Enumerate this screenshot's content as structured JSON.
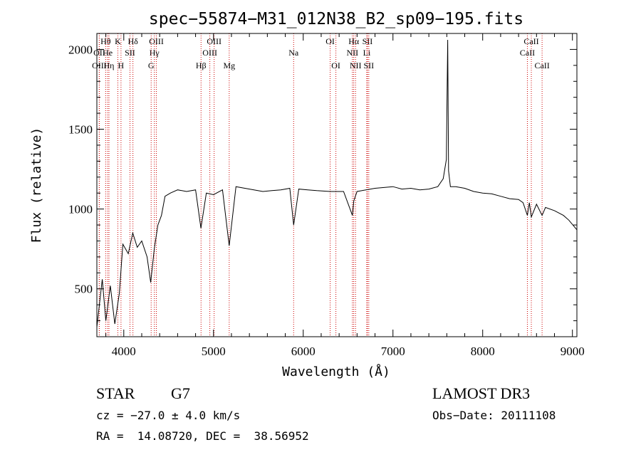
{
  "chart_data": {
    "type": "line",
    "title": "spec−55874−M31_012N38_B2_sp09−195.fits",
    "xlabel": "Wavelength (Å)",
    "ylabel": "Flux (relative)",
    "xlim": [
      3700,
      9050
    ],
    "ylim": [
      200,
      2100
    ],
    "x_ticks": [
      4000,
      5000,
      6000,
      7000,
      8000,
      9000
    ],
    "x_tick_labels": [
      "4000",
      "5000",
      "6000",
      "7000",
      "8000",
      "9000"
    ],
    "y_ticks": [
      500,
      1000,
      1500,
      2000
    ],
    "y_tick_labels": [
      "500",
      "1000",
      "1500",
      "2000"
    ],
    "grid": false,
    "line_color": "#000000",
    "marker_color": "#cc0000",
    "lines": [
      {
        "label": "Hθ",
        "wavelength": 3798,
        "row": 1
      },
      {
        "label": "OII",
        "wavelength": 3727,
        "row": 2
      },
      {
        "label": "OIII",
        "wavelength": 3727,
        "row": 3
      },
      {
        "label": "He",
        "wavelength": 3820,
        "row": 2
      },
      {
        "label": "Hη",
        "wavelength": 3835,
        "row": 3
      },
      {
        "label": "K",
        "wavelength": 3934,
        "row": 1
      },
      {
        "label": "SII",
        "wavelength": 4069,
        "row": 2
      },
      {
        "label": "H",
        "wavelength": 3969,
        "row": 3
      },
      {
        "label": "Hδ",
        "wavelength": 4102,
        "row": 1
      },
      {
        "label": "OIII",
        "wavelength": 4363,
        "row": 1
      },
      {
        "label": "Hγ",
        "wavelength": 4341,
        "row": 2
      },
      {
        "label": "G",
        "wavelength": 4305,
        "row": 3
      },
      {
        "label": "OIII",
        "wavelength": 5007,
        "row": 1
      },
      {
        "label": "OIII",
        "wavelength": 4959,
        "row": 2
      },
      {
        "label": "Hβ",
        "wavelength": 4861,
        "row": 3
      },
      {
        "label": "Mg",
        "wavelength": 5175,
        "row": 3
      },
      {
        "label": "Na",
        "wavelength": 5893,
        "row": 2
      },
      {
        "label": "OI",
        "wavelength": 6300,
        "row": 1
      },
      {
        "label": "OI",
        "wavelength": 6364,
        "row": 3
      },
      {
        "label": "Hα",
        "wavelength": 6563,
        "row": 1
      },
      {
        "label": "NII",
        "wavelength": 6548,
        "row": 2
      },
      {
        "label": "NII",
        "wavelength": 6583,
        "row": 3
      },
      {
        "label": "SII",
        "wavelength": 6716,
        "row": 1
      },
      {
        "label": "Li",
        "wavelength": 6708,
        "row": 2
      },
      {
        "label": "SII",
        "wavelength": 6731,
        "row": 3
      },
      {
        "label": "CaII",
        "wavelength": 8542,
        "row": 1
      },
      {
        "label": "CaII",
        "wavelength": 8498,
        "row": 2
      },
      {
        "label": "CaII",
        "wavelength": 8662,
        "row": 3
      }
    ],
    "series": [
      {
        "x": [
          3700,
          3760,
          3800,
          3850,
          3900,
          3950,
          3990,
          4050,
          4100,
          4150,
          4200,
          4260,
          4300,
          4340,
          4380,
          4420,
          4460,
          4520,
          4600,
          4700,
          4800,
          4860,
          4920,
          5000,
          5100,
          5175,
          5250,
          5350,
          5450,
          5550,
          5650,
          5750,
          5850,
          5893,
          5950,
          6050,
          6150,
          6300,
          6450,
          6548,
          6563,
          6600,
          6700,
          6800,
          6900,
          7000,
          7100,
          7200,
          7300,
          7400,
          7500,
          7560,
          7595,
          7610,
          7620,
          7640,
          7700,
          7800,
          7900,
          8000,
          8100,
          8200,
          8300,
          8400,
          8450,
          8498,
          8520,
          8542,
          8600,
          8662,
          8700,
          8800,
          8900,
          8960,
          9050
        ],
        "y": [
          260,
          560,
          300,
          520,
          280,
          470,
          780,
          720,
          850,
          760,
          800,
          700,
          540,
          750,
          900,
          960,
          1080,
          1100,
          1120,
          1110,
          1120,
          880,
          1100,
          1090,
          1120,
          770,
          1140,
          1130,
          1120,
          1110,
          1115,
          1120,
          1130,
          900,
          1125,
          1120,
          1115,
          1110,
          1110,
          960,
          1050,
          1110,
          1120,
          1130,
          1135,
          1140,
          1125,
          1130,
          1120,
          1125,
          1140,
          1190,
          1310,
          2060,
          1240,
          1140,
          1140,
          1130,
          1110,
          1100,
          1095,
          1080,
          1065,
          1060,
          1040,
          960,
          1040,
          950,
          1030,
          960,
          1010,
          990,
          960,
          930,
          870
        ]
      }
    ]
  },
  "info": {
    "object_type": "STAR",
    "subclass": "G7",
    "survey": "LAMOST DR3",
    "cz": "cz = −27.0 ± 4.0 km/s",
    "obs_date": "Obs−Date: 20111108",
    "coords": "RA =  14.08720, DEC =  38.56952"
  }
}
